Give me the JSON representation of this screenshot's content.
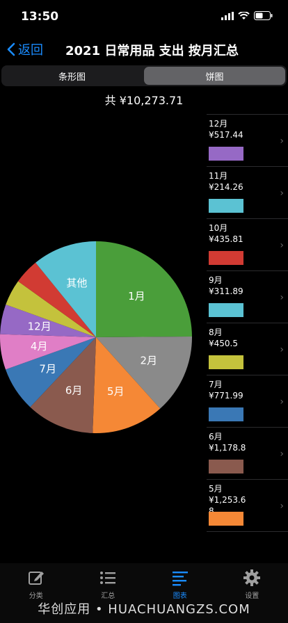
{
  "status": {
    "time": "13:50"
  },
  "nav": {
    "back_label": "返回",
    "title": "2021 日常用品 支出 按月汇总"
  },
  "segments": {
    "bar": "条形图",
    "pie": "饼图",
    "selected": "饼图"
  },
  "total": "共 ¥10,273.71",
  "chart_data": {
    "type": "pie",
    "start_angle_deg": 0,
    "direction": "clockwise",
    "slices": [
      {
        "label": "1月",
        "value": 2556.58,
        "color": "#4a9e3a"
      },
      {
        "label": "2月",
        "value": 1383.41,
        "color": "#8a8a8a"
      },
      {
        "label": "5月",
        "value": 1253.68,
        "color": "#f58836"
      },
      {
        "label": "6月",
        "value": 1178.8,
        "color": "#8a5a4e"
      },
      {
        "label": "7月",
        "value": 771.99,
        "color": "#3a78b5"
      },
      {
        "label": "4月",
        "value": 612.0,
        "color": "#e07ec6"
      },
      {
        "label": "12月",
        "value": 517.44,
        "color": "#9669c5"
      },
      {
        "label": "",
        "value": 450.5,
        "color": "#c4c23c"
      },
      {
        "label": "",
        "value": 435.81,
        "color": "#d13b33"
      },
      {
        "label": "其他",
        "value": 1113.5,
        "color": "#5bc2d3"
      }
    ]
  },
  "legend": [
    {
      "text": "12月\n¥517.44",
      "color": "#9669c5"
    },
    {
      "text": "11月\n¥214.26",
      "color": "#5bc2d3"
    },
    {
      "text": "10月\n¥435.81",
      "color": "#d13b33"
    },
    {
      "text": "9月\n¥311.89",
      "color": "#5bc2d3"
    },
    {
      "text": "8月\n¥450.5",
      "color": "#c4c23c"
    },
    {
      "text": "7月\n¥771.99",
      "color": "#3a78b5"
    },
    {
      "text": "6月\n¥1,178.8",
      "color": "#8a5a4e"
    },
    {
      "text": "5月\n¥1,253.68",
      "color": "#f58836"
    }
  ],
  "tabs": [
    {
      "label": "分类",
      "icon": "edit-icon",
      "active": false
    },
    {
      "label": "汇总",
      "icon": "list-icon",
      "active": false
    },
    {
      "label": "图表",
      "icon": "chart-icon",
      "active": true
    },
    {
      "label": "设置",
      "icon": "gear-icon",
      "active": false
    }
  ],
  "watermark": "华创应用 • HUACHUANGZS.COM"
}
